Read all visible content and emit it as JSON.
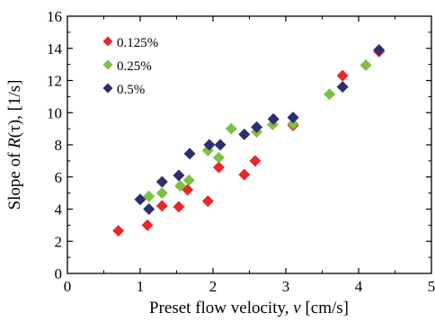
{
  "chart_data": {
    "type": "scatter",
    "xlabel": "Preset flow velocity, v [cm/s]",
    "xlabel_parts": {
      "prefix": "Preset flow velocity, ",
      "var": "v",
      "suffix": " [cm/s]"
    },
    "ylabel": "Slope of R(τ),  [1/s]",
    "ylabel_parts": {
      "prefix": "Slope of ",
      "var": "R",
      "suffix": "(τ),  [1/s]"
    },
    "xlim": [
      0,
      5
    ],
    "ylim": [
      0,
      16
    ],
    "xticks": [
      "0",
      "1",
      "2",
      "3",
      "4",
      "5"
    ],
    "yticks": [
      "0",
      "2",
      "4",
      "6",
      "8",
      "10",
      "12",
      "14",
      "16"
    ],
    "grid": false,
    "legend_position": "top-left",
    "marker": "diamond",
    "series": [
      {
        "name": "0.125%",
        "color": "#e8272a",
        "points": [
          [
            0.7,
            2.65
          ],
          [
            1.1,
            3.0
          ],
          [
            1.3,
            4.2
          ],
          [
            1.53,
            4.15
          ],
          [
            1.65,
            5.2
          ],
          [
            1.93,
            4.5
          ],
          [
            2.08,
            6.6
          ],
          [
            2.43,
            6.15
          ],
          [
            2.58,
            7.0
          ],
          [
            3.1,
            9.2
          ],
          [
            3.78,
            12.3
          ],
          [
            4.28,
            13.8
          ]
        ]
      },
      {
        "name": "0.25%",
        "color": "#7dc142",
        "points": [
          [
            1.12,
            4.8
          ],
          [
            1.3,
            5.0
          ],
          [
            1.55,
            5.45
          ],
          [
            1.67,
            5.8
          ],
          [
            1.93,
            7.65
          ],
          [
            2.08,
            7.2
          ],
          [
            2.25,
            9.0
          ],
          [
            2.6,
            8.8
          ],
          [
            2.82,
            9.25
          ],
          [
            3.1,
            9.3
          ],
          [
            3.6,
            11.15
          ],
          [
            4.1,
            12.95
          ]
        ]
      },
      {
        "name": "0.5%",
        "color": "#2d2e6e",
        "points": [
          [
            1.0,
            4.6
          ],
          [
            1.12,
            4.0
          ],
          [
            1.3,
            5.7
          ],
          [
            1.53,
            6.1
          ],
          [
            1.68,
            7.45
          ],
          [
            1.95,
            8.0
          ],
          [
            2.1,
            8.0
          ],
          [
            2.43,
            8.65
          ],
          [
            2.6,
            9.1
          ],
          [
            2.83,
            9.6
          ],
          [
            3.1,
            9.7
          ],
          [
            3.78,
            11.6
          ],
          [
            4.28,
            13.9
          ]
        ]
      }
    ]
  }
}
